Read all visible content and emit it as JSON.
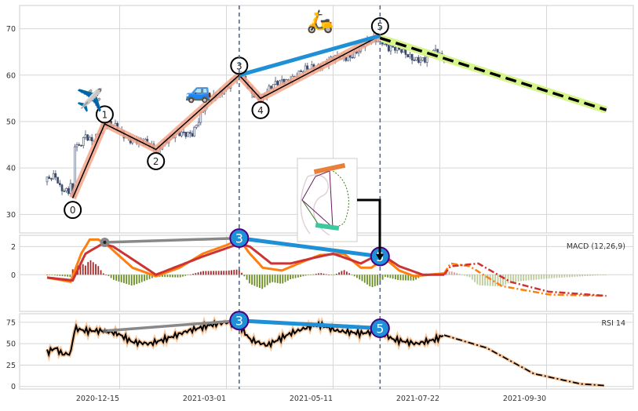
{
  "chart_data": {
    "type": "line",
    "title": "",
    "x_unit": "trading day index",
    "x_ticks": [
      {
        "day": 34,
        "label": "2020-12-15"
      },
      {
        "day": 84,
        "label": "2021-03-01"
      },
      {
        "day": 134,
        "label": "2021-05-11"
      },
      {
        "day": 184,
        "label": "2021-07-22"
      },
      {
        "day": 234,
        "label": "2021-09-30"
      }
    ],
    "xlim": [
      -13,
      275
    ],
    "price": {
      "ylim": [
        26,
        75
      ],
      "y_ticks": [
        30,
        40,
        50,
        60,
        70
      ],
      "close_path": [
        [
          0,
          37
        ],
        [
          4,
          38
        ],
        [
          6,
          36
        ],
        [
          10,
          35.5
        ],
        [
          11,
          37
        ],
        [
          12,
          33.5
        ],
        [
          13,
          45
        ],
        [
          15,
          44
        ],
        [
          18,
          46.5
        ],
        [
          21,
          46
        ],
        [
          24,
          48
        ],
        [
          27,
          49.5
        ],
        [
          32,
          48.5
        ],
        [
          37,
          47
        ],
        [
          44,
          45.5
        ],
        [
          51,
          44
        ],
        [
          55,
          46
        ],
        [
          62,
          47
        ],
        [
          68,
          48
        ],
        [
          74,
          53
        ],
        [
          82,
          57
        ],
        [
          90,
          60
        ],
        [
          95,
          57
        ],
        [
          100,
          55
        ],
        [
          105,
          57
        ],
        [
          110,
          59
        ],
        [
          118,
          60
        ],
        [
          125,
          62
        ],
        [
          132,
          63
        ],
        [
          140,
          64
        ],
        [
          148,
          66
        ],
        [
          156,
          68.5
        ],
        [
          160,
          66
        ],
        [
          165,
          65
        ],
        [
          172,
          64
        ],
        [
          177,
          63
        ],
        [
          182,
          65
        ],
        [
          186,
          64
        ]
      ],
      "waves": [
        {
          "label": "0",
          "day": 12,
          "value": 33.5,
          "pos": "below"
        },
        {
          "label": "1",
          "day": 27,
          "value": 49.5,
          "pos": "above"
        },
        {
          "label": "2",
          "day": 51,
          "value": 44,
          "pos": "below"
        },
        {
          "label": "3",
          "day": 90,
          "value": 60,
          "pos": "above"
        },
        {
          "label": "4",
          "day": 100,
          "value": 55,
          "pos": "below"
        },
        {
          "label": "5",
          "day": 156,
          "value": 68.5,
          "pos": "above"
        }
      ],
      "trend_3_5": [
        [
          90,
          60
        ],
        [
          156,
          68.5
        ]
      ],
      "forecast": [
        [
          156,
          68
        ],
        [
          262,
          52.5
        ]
      ],
      "icons": [
        {
          "name": "airplane",
          "glyph": "✈️",
          "day": 20,
          "value": 53
        },
        {
          "name": "car",
          "glyph": "🚙",
          "day": 71,
          "value": 55
        },
        {
          "name": "scooter",
          "glyph": "🛵",
          "day": 128,
          "value": 70
        }
      ]
    },
    "macd": {
      "label": "MACD (12,26,9)",
      "ylim": [
        -2.6,
        2.8
      ],
      "y_ticks": [
        0,
        2
      ],
      "macd_path": [
        [
          0,
          -0.2
        ],
        [
          11,
          -0.5
        ],
        [
          16,
          1.5
        ],
        [
          20,
          2.5
        ],
        [
          24,
          2.5
        ],
        [
          29,
          2.0
        ],
        [
          40,
          0.5
        ],
        [
          51,
          -0.1
        ],
        [
          62,
          0.5
        ],
        [
          73,
          1.5
        ],
        [
          84,
          2.1
        ],
        [
          90,
          2.5
        ],
        [
          95,
          1.5
        ],
        [
          101,
          0.5
        ],
        [
          110,
          0.3
        ],
        [
          121,
          1.0
        ],
        [
          128,
          1.4
        ],
        [
          139,
          1.5
        ],
        [
          147,
          0.5
        ],
        [
          152,
          0.5
        ],
        [
          158,
          1.2
        ],
        [
          165,
          0.3
        ],
        [
          172,
          -0.1
        ],
        [
          186,
          0.1
        ]
      ],
      "signal_path": [
        [
          0,
          -0.2
        ],
        [
          12,
          -0.4
        ],
        [
          18,
          1.5
        ],
        [
          26,
          2.2
        ],
        [
          31,
          2.0
        ],
        [
          51,
          0
        ],
        [
          73,
          1.3
        ],
        [
          90,
          2.2
        ],
        [
          95,
          2.0
        ],
        [
          105,
          0.8
        ],
        [
          114,
          0.8
        ],
        [
          125,
          1.2
        ],
        [
          134,
          1.5
        ],
        [
          147,
          0.8
        ],
        [
          156,
          1.5
        ],
        [
          165,
          0.6
        ],
        [
          176,
          0
        ],
        [
          186,
          0
        ]
      ],
      "macd_forecast": [
        [
          186,
          0.1
        ],
        [
          189,
          0.8
        ],
        [
          198,
          0.6
        ],
        [
          213,
          -0.8
        ],
        [
          235,
          -1.4
        ],
        [
          261,
          -1.5
        ]
      ],
      "signal_forecast": [
        [
          186,
          0
        ],
        [
          189,
          0.6
        ],
        [
          202,
          0.8
        ],
        [
          217,
          -0.5
        ],
        [
          235,
          -1.2
        ],
        [
          262,
          -1.5
        ]
      ],
      "markers": [
        {
          "label": "",
          "day": 27,
          "value": 2.3,
          "style": "gray-dot"
        },
        {
          "label": "3",
          "day": 90,
          "value": 2.6,
          "style": "blue"
        },
        {
          "label": "5",
          "day": 156,
          "value": 1.3,
          "style": "blue"
        }
      ]
    },
    "rsi": {
      "label": "RSI 14",
      "ylim": [
        -3,
        85
      ],
      "y_ticks": [
        0,
        25,
        50,
        75
      ],
      "path": [
        [
          0,
          40
        ],
        [
          4,
          45
        ],
        [
          7,
          38
        ],
        [
          11,
          38
        ],
        [
          13,
          68
        ],
        [
          18,
          65
        ],
        [
          26,
          65
        ],
        [
          33,
          62
        ],
        [
          40,
          52
        ],
        [
          48,
          50
        ],
        [
          55,
          55
        ],
        [
          66,
          65
        ],
        [
          77,
          72
        ],
        [
          84,
          75
        ],
        [
          90,
          72
        ],
        [
          95,
          55
        ],
        [
          103,
          48
        ],
        [
          114,
          62
        ],
        [
          123,
          70
        ],
        [
          128,
          72
        ],
        [
          136,
          65
        ],
        [
          147,
          62
        ],
        [
          156,
          65
        ],
        [
          162,
          55
        ],
        [
          173,
          50
        ],
        [
          182,
          55
        ],
        [
          186,
          60
        ]
      ],
      "forecast": [
        [
          186,
          60
        ],
        [
          206,
          45
        ],
        [
          228,
          15
        ],
        [
          250,
          3
        ],
        [
          261,
          1
        ]
      ],
      "markers": [
        {
          "label": "",
          "day": 27,
          "value": 65,
          "style": "gray-star"
        },
        {
          "label": "3",
          "day": 90,
          "value": 77,
          "style": "blue"
        },
        {
          "label": "5",
          "day": 156,
          "value": 68,
          "style": "blue"
        }
      ]
    }
  },
  "colors": {
    "candle": "#3b4a6b",
    "wave_glow": "#f4a68a",
    "trend": "#1f8fd6",
    "forecast_glow": "#d6f58a",
    "macd": "#ff7f0e",
    "signal": "#cc3333",
    "hist_pos": "#a52a2a",
    "hist_neg": "#6b8e23",
    "marker_outline": "#4b0082",
    "vline": "#5a6a80"
  }
}
